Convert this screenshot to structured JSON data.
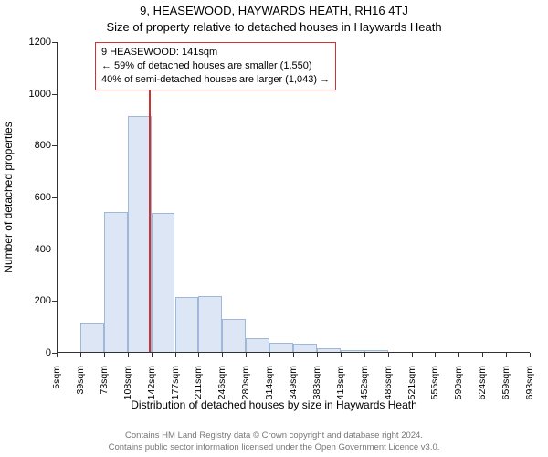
{
  "top_title": "9, HEASEWOOD, HAYWARDS HEATH, RH16 4TJ",
  "subtitle": "Size of property relative to detached houses in Haywards Heath",
  "y_axis_title": "Number of detached properties",
  "x_axis_title": "Distribution of detached houses by size in Haywards Heath",
  "footer_line1": "Contains HM Land Registry data © Crown copyright and database right 2024.",
  "footer_line2": "Contains public sector information licensed under the Open Government Licence v3.0.",
  "info_box": {
    "line1": "9 HEASEWOOD: 141sqm",
    "line2": "← 59% of detached houses are smaller (1,550)",
    "line3": "40% of semi-detached houses are larger (1,043) →"
  },
  "chart": {
    "type": "histogram",
    "background_color": "#ffffff",
    "bar_fill": "#dde6f4",
    "bar_border": "#9fb7d9",
    "marker_color": "#cc3333",
    "marker_x_value": 141,
    "ylim": [
      0,
      1200
    ],
    "ytick_step": 200,
    "yticks": [
      0,
      200,
      400,
      600,
      800,
      1000,
      1200
    ],
    "x_bin_width": 34.4,
    "x_start": 5,
    "x_labels": [
      "5sqm",
      "39sqm",
      "73sqm",
      "108sqm",
      "142sqm",
      "177sqm",
      "211sqm",
      "246sqm",
      "280sqm",
      "314sqm",
      "349sqm",
      "383sqm",
      "418sqm",
      "452sqm",
      "486sqm",
      "521sqm",
      "555sqm",
      "590sqm",
      "624sqm",
      "659sqm",
      "693sqm"
    ],
    "bar_values": [
      0,
      118,
      545,
      915,
      540,
      215,
      220,
      130,
      55,
      40,
      35,
      18,
      12,
      10,
      0,
      0,
      0,
      0,
      0,
      0
    ],
    "axis_color": "#333333",
    "tick_fontsize": 11,
    "title_fontsize": 13,
    "label_fontsize": 12,
    "footer_color": "#777777"
  }
}
